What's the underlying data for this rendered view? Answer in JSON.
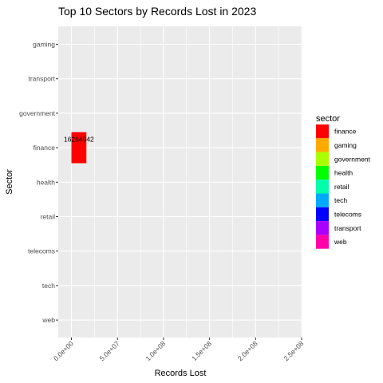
{
  "chart_data": {
    "type": "bar",
    "orientation": "horizontal",
    "title": "Top 10 Sectors by Records Lost in 2023",
    "xlabel": "Records Lost",
    "ylabel": "Sector",
    "xlim": [
      0,
      250000000
    ],
    "x_ticks": [
      0,
      50000000,
      100000000,
      150000000,
      200000000,
      250000000
    ],
    "x_tick_labels": [
      "0.0e+00",
      "5.0e+07",
      "1.0e+08",
      "1.5e+08",
      "2.0e+08",
      "2.5e+08"
    ],
    "categories": [
      "gaming",
      "transport",
      "government",
      "finance",
      "health",
      "retail",
      "telecoms",
      "tech",
      "web"
    ],
    "values": [
      null,
      null,
      null,
      16264942,
      null,
      null,
      null,
      null,
      null
    ],
    "data_labels": [
      "",
      "",
      "",
      "16264942",
      "",
      "",
      "",
      "",
      ""
    ],
    "grid": true,
    "legend": {
      "title": "sector",
      "position": "right",
      "entries": [
        {
          "label": "finance",
          "color": "#FF0000"
        },
        {
          "label": "gaming",
          "color": "#FFAA00"
        },
        {
          "label": "government",
          "color": "#AAFF00"
        },
        {
          "label": "health",
          "color": "#00FF00"
        },
        {
          "label": "retail",
          "color": "#00FFAA"
        },
        {
          "label": "tech",
          "color": "#00AAFF"
        },
        {
          "label": "telecoms",
          "color": "#0000FF"
        },
        {
          "label": "transport",
          "color": "#AA00FF"
        },
        {
          "label": "web",
          "color": "#FF00AA"
        }
      ]
    },
    "panel_color": "#EBEBEB",
    "grid_color": "#FFFFFF"
  }
}
